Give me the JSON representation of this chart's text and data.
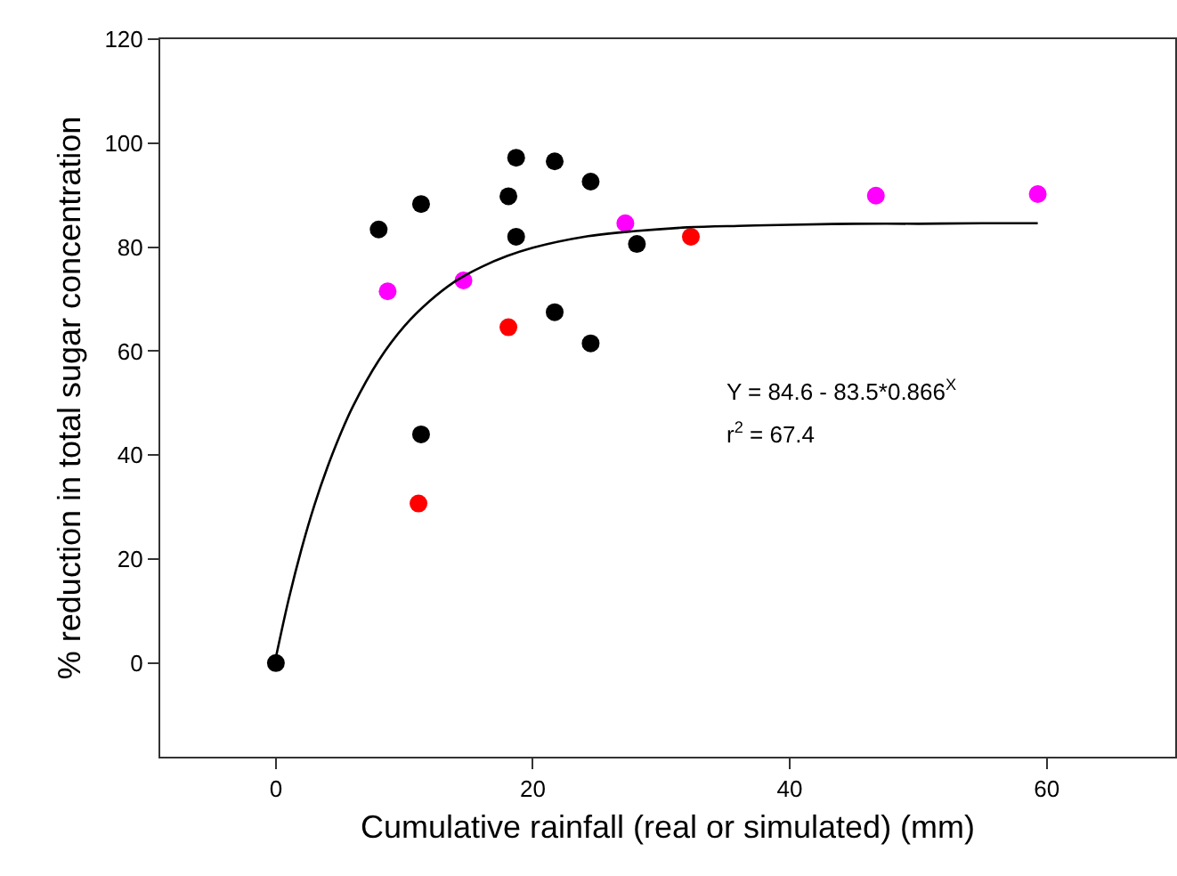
{
  "chart_data": {
    "type": "scatter",
    "xlabel": "Cumulative rainfall (real or simulated) (mm)",
    "ylabel": "% reduction in total sugar concentration",
    "xlim": [
      -9,
      70
    ],
    "xticks": [
      0,
      20,
      40,
      60
    ],
    "ylim": [
      -18,
      120
    ],
    "yticks": [
      0,
      20,
      40,
      60,
      80,
      100,
      120
    ],
    "marker": "circle",
    "annotations": [
      "Y = 84.6 - 83.5*0.866$^{X}$",
      "r$^{2}$ = 67.4"
    ],
    "series": [
      {
        "color": "#000000",
        "x": [
          0,
          8.0,
          11.3,
          11.3,
          18.7,
          21.7,
          18.1,
          24.5,
          18.7,
          28.1,
          21.7,
          24.5
        ],
        "values": [
          0,
          83.4,
          88.3,
          44.0,
          97.2,
          96.5,
          89.8,
          92.6,
          82.0,
          80.6,
          67.5,
          61.5
        ]
      },
      {
        "color": "#ff00ff",
        "x": [
          8.7,
          14.6,
          27.2,
          46.7,
          59.3
        ],
        "values": [
          71.5,
          73.6,
          84.6,
          89.9,
          90.2
        ]
      },
      {
        "color": "#ff0000",
        "x": [
          11.1,
          18.1,
          32.3
        ],
        "values": [
          30.7,
          64.6,
          82.0
        ]
      },
      {
        "type": "line",
        "color": "#000000",
        "line_style": "solid",
        "marker": "none",
        "x": [
          0,
          1,
          2,
          3,
          4,
          5,
          6,
          8,
          10,
          12,
          14,
          16,
          18,
          20,
          24,
          28,
          32,
          36,
          40,
          45,
          50,
          55,
          59.3
        ],
        "values": [
          1.1,
          12.3,
          22.0,
          30.4,
          37.6,
          43.9,
          49.4,
          58.2,
          64.8,
          69.7,
          73.5,
          76.2,
          78.3,
          79.9,
          82.0,
          83.1,
          83.8,
          84.1,
          84.3,
          84.5,
          84.5,
          84.6,
          84.6
        ]
      }
    ]
  }
}
